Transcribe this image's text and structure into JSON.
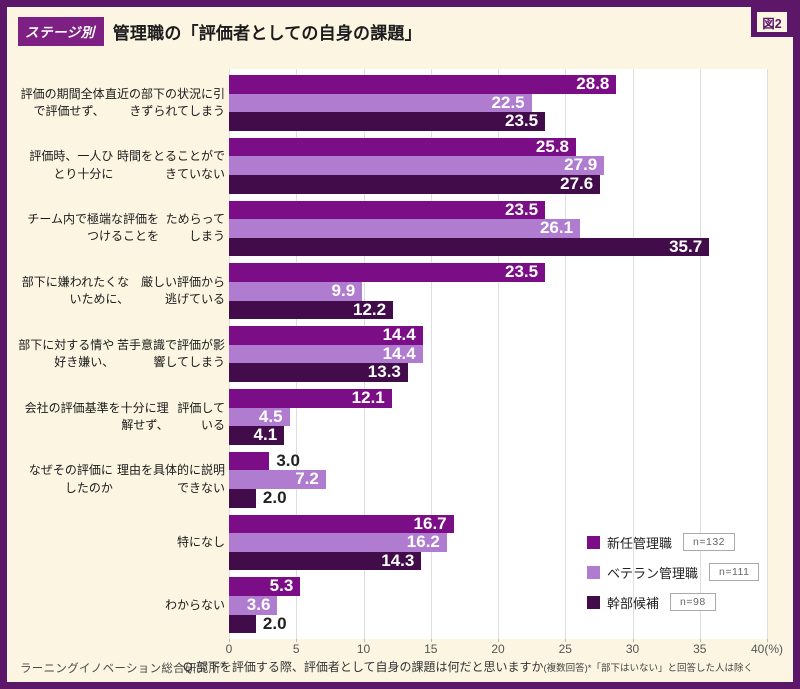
{
  "frame": {
    "figure_label": "図2"
  },
  "header": {
    "badge": "ステージ別",
    "title": "管理職の「評価者としての自身の課題」"
  },
  "chart_data": {
    "type": "bar",
    "orientation": "horizontal",
    "title": "管理職の「評価者としての自身の課題」",
    "categories": [
      [
        "評価の期間全体で評価せず、",
        "直近の部下の状況に引きずられてしまう"
      ],
      [
        "評価時、一人ひとり十分に",
        "時間をとることができていない"
      ],
      [
        "チーム内で極端な評価をつけることを",
        "ためらってしまう"
      ],
      [
        "部下に嫌われたくないために、",
        "厳しい評価から逃げている"
      ],
      [
        "部下に対する情や好き嫌い、",
        "苦手意識で評価が影響してしまう"
      ],
      [
        "会社の評価基準を十分に理解せず、",
        "評価している"
      ],
      [
        "なぜその評価にしたのか",
        "理由を具体的に説明できない"
      ],
      [
        "特になし"
      ],
      [
        "わからない"
      ]
    ],
    "series": [
      {
        "name": "新任管理職",
        "n_label": "n=132",
        "color": "#7B0E87",
        "values": [
          28.8,
          25.8,
          23.5,
          23.5,
          14.4,
          12.1,
          3.0,
          16.7,
          5.3
        ]
      },
      {
        "name": "ベテラン管理職",
        "n_label": "n=111",
        "color": "#AF7CD0",
        "values": [
          22.5,
          27.9,
          26.1,
          9.9,
          14.4,
          4.5,
          7.2,
          16.2,
          3.6
        ]
      },
      {
        "name": "幹部候補",
        "n_label": "n=98",
        "color": "#410C49",
        "values": [
          23.5,
          27.6,
          35.7,
          12.2,
          13.3,
          4.1,
          2.0,
          14.3,
          2.0
        ]
      }
    ],
    "xlim": [
      0,
      40
    ],
    "x_ticks": [
      "0",
      "5",
      "10",
      "15",
      "20",
      "25",
      "30",
      "35",
      "40(%)"
    ],
    "grid": true,
    "legend_position": "inside-right-bottom",
    "value_label_decimals": 1
  },
  "footer": {
    "source": "ラーニングイノベーション総合研究所",
    "source_mark": "®",
    "note_main": "Q.部下を評価する際、評価者として自身の課題は何だと思いますか",
    "note_small": "(複数回答)*「部下はいない」と回答した人は除く"
  }
}
